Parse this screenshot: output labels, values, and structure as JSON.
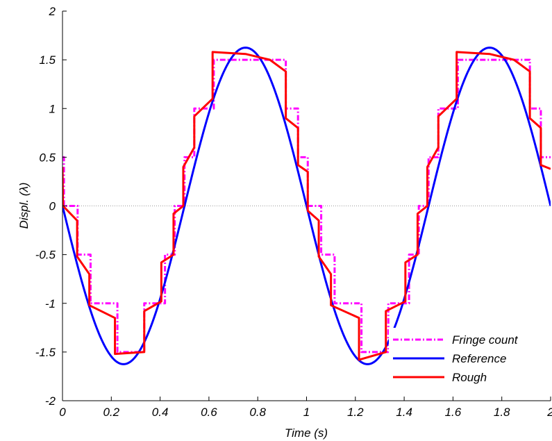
{
  "chart_data": {
    "type": "line",
    "xlabel": "Time (s)",
    "ylabel": "Displ. (λ)",
    "xlim": [
      0,
      2
    ],
    "ylim": [
      -2,
      2
    ],
    "xticks": [
      "0",
      "0.2",
      "0.4",
      "0.6",
      "0.8",
      "1",
      "1.2",
      "1.4",
      "1.6",
      "1.8",
      "2"
    ],
    "yticks": [
      "2",
      "1.5",
      "1",
      "0.5",
      "0",
      "-0.5",
      "-1",
      "-1.5",
      "-2"
    ],
    "grid": false,
    "zero_line": true,
    "legend_position": "bottom-right",
    "series": [
      {
        "name": "Fringe count",
        "color": "#ff00ff",
        "style": "dash-dot",
        "points": [
          [
            0,
            0.5
          ],
          [
            0.006,
            0.5
          ],
          [
            0.006,
            0
          ],
          [
            0.062,
            0
          ],
          [
            0.062,
            -0.5
          ],
          [
            0.115,
            -0.5
          ],
          [
            0.115,
            -1
          ],
          [
            0.225,
            -1
          ],
          [
            0.225,
            -1.5
          ],
          [
            0.335,
            -1.5
          ],
          [
            0.335,
            -1
          ],
          [
            0.42,
            -1
          ],
          [
            0.42,
            -0.5
          ],
          [
            0.46,
            -0.5
          ],
          [
            0.46,
            0
          ],
          [
            0.5,
            0
          ],
          [
            0.5,
            0.5
          ],
          [
            0.54,
            0.5
          ],
          [
            0.54,
            1
          ],
          [
            0.62,
            1
          ],
          [
            0.62,
            1.5
          ],
          [
            0.915,
            1.5
          ],
          [
            0.915,
            1
          ],
          [
            0.965,
            1
          ],
          [
            0.965,
            0.5
          ],
          [
            1.005,
            0.5
          ],
          [
            1.005,
            0
          ],
          [
            1.06,
            0
          ],
          [
            1.06,
            -0.5
          ],
          [
            1.115,
            -0.5
          ],
          [
            1.115,
            -1
          ],
          [
            1.225,
            -1
          ],
          [
            1.225,
            -1.5
          ],
          [
            1.335,
            -1.5
          ],
          [
            1.335,
            -1
          ],
          [
            1.42,
            -1
          ],
          [
            1.42,
            -0.5
          ],
          [
            1.46,
            -0.5
          ],
          [
            1.46,
            0
          ],
          [
            1.5,
            0
          ],
          [
            1.5,
            0.5
          ],
          [
            1.54,
            0.5
          ],
          [
            1.54,
            1
          ],
          [
            1.62,
            1
          ],
          [
            1.62,
            1.5
          ],
          [
            1.915,
            1.5
          ],
          [
            1.915,
            1
          ],
          [
            1.96,
            1
          ],
          [
            1.96,
            0.5
          ],
          [
            2,
            0.5
          ]
        ]
      },
      {
        "name": "Reference",
        "color": "#0000ff",
        "style": "solid",
        "function": "-1.625*sin(2*pi*t)",
        "t_range": [
          0,
          2
        ]
      },
      {
        "name": "Rough",
        "color": "#ff0000",
        "style": "solid",
        "points": [
          [
            0,
            0.4
          ],
          [
            0.002,
            0
          ],
          [
            0.06,
            -0.15
          ],
          [
            0.06,
            -0.52
          ],
          [
            0.11,
            -0.7
          ],
          [
            0.11,
            -1.02
          ],
          [
            0.215,
            -1.15
          ],
          [
            0.215,
            -1.52
          ],
          [
            0.335,
            -1.5
          ],
          [
            0.335,
            -1.08
          ],
          [
            0.405,
            -0.98
          ],
          [
            0.405,
            -0.58
          ],
          [
            0.455,
            -0.5
          ],
          [
            0.455,
            -0.08
          ],
          [
            0.495,
            0
          ],
          [
            0.495,
            0.4
          ],
          [
            0.54,
            0.6
          ],
          [
            0.54,
            0.92
          ],
          [
            0.615,
            1.1
          ],
          [
            0.615,
            1.58
          ],
          [
            0.75,
            1.56
          ],
          [
            0.85,
            1.5
          ],
          [
            0.915,
            1.38
          ],
          [
            0.915,
            0.9
          ],
          [
            0.965,
            0.8
          ],
          [
            0.965,
            0.42
          ],
          [
            1.005,
            0.35
          ],
          [
            1.005,
            -0.05
          ],
          [
            1.05,
            -0.15
          ],
          [
            1.05,
            -0.52
          ],
          [
            1.1,
            -0.7
          ],
          [
            1.1,
            -1.02
          ],
          [
            1.215,
            -1.15
          ],
          [
            1.215,
            -1.58
          ],
          [
            1.325,
            -1.5
          ],
          [
            1.325,
            -1.08
          ],
          [
            1.405,
            -0.98
          ],
          [
            1.405,
            -0.58
          ],
          [
            1.455,
            -0.5
          ],
          [
            1.455,
            -0.08
          ],
          [
            1.495,
            0
          ],
          [
            1.495,
            0.4
          ],
          [
            1.54,
            0.6
          ],
          [
            1.54,
            0.92
          ],
          [
            1.615,
            1.1
          ],
          [
            1.615,
            1.58
          ],
          [
            1.75,
            1.56
          ],
          [
            1.85,
            1.5
          ],
          [
            1.915,
            1.38
          ],
          [
            1.915,
            0.9
          ],
          [
            1.96,
            0.8
          ],
          [
            1.96,
            0.42
          ],
          [
            2,
            0.38
          ]
        ]
      }
    ]
  }
}
